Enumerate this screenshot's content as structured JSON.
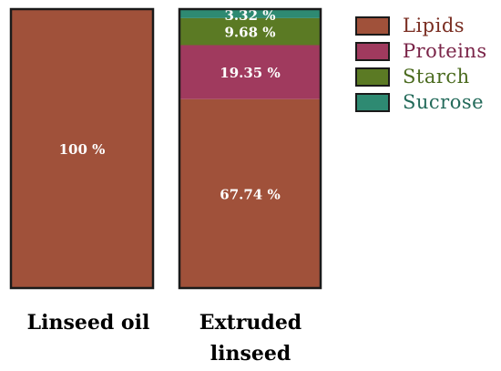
{
  "chart_data": {
    "type": "bar",
    "stacked": true,
    "categories": [
      "Linseed oil",
      "Extruded linseed"
    ],
    "series": [
      {
        "name": "Lipids",
        "values": [
          100,
          67.74
        ],
        "labels": [
          "100 %",
          "67.74 %"
        ],
        "color": "#a0513a"
      },
      {
        "name": "Proteins",
        "values": [
          0,
          19.35
        ],
        "labels": [
          "",
          "19.35 %"
        ],
        "color": "#a03a5e"
      },
      {
        "name": "Starch",
        "values": [
          0,
          9.68
        ],
        "labels": [
          "",
          "9.68 %"
        ],
        "color": "#5b7a24"
      },
      {
        "name": "Sucrose",
        "values": [
          0,
          3.32
        ],
        "labels": [
          "",
          "3.32 %"
        ],
        "color": "#2e8a72"
      }
    ],
    "legend_text_colors": [
      "#7a2e22",
      "#7a2448",
      "#4a6a1e",
      "#236a5a"
    ],
    "ylim": [
      0,
      100
    ],
    "legend": "top-right",
    "grid": false
  }
}
